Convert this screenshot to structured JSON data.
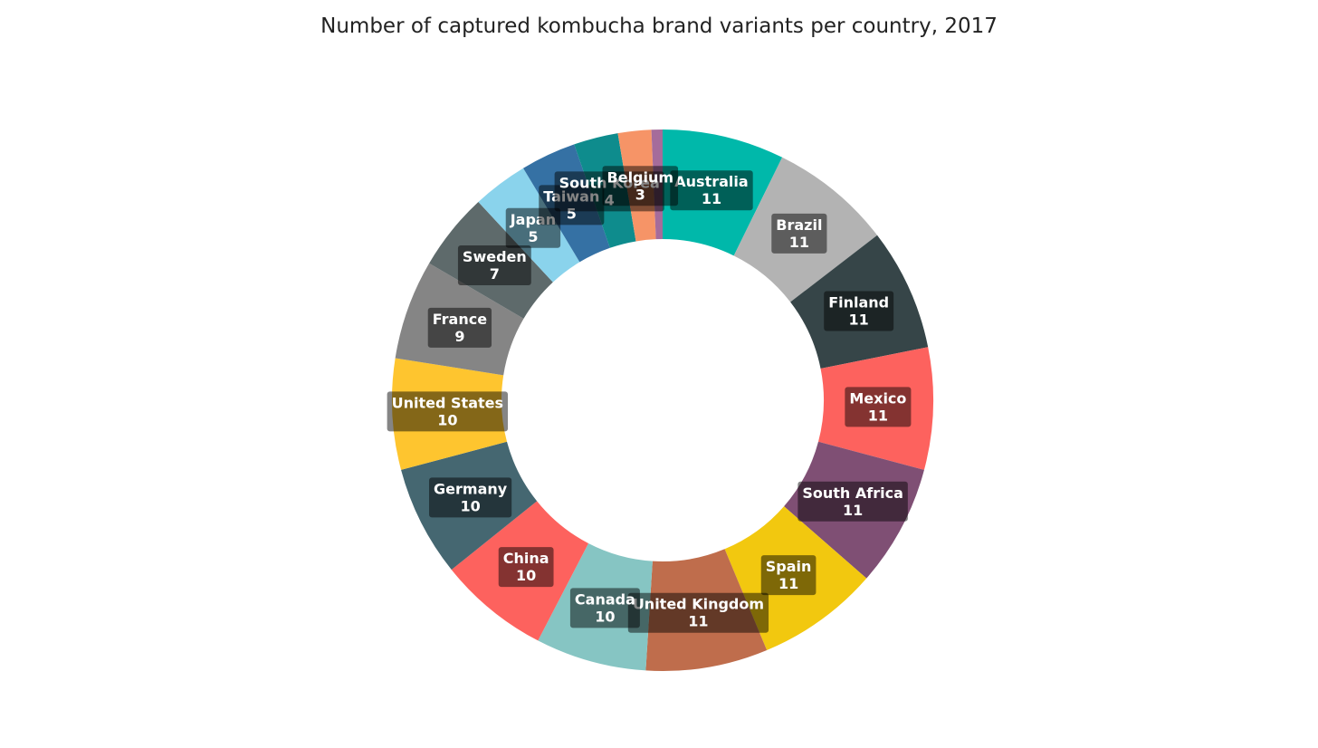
{
  "chart_data": {
    "type": "pie",
    "title": "Number of captured kombucha brand variants per country, 2017",
    "hole": true,
    "slices": [
      {
        "label": "Australia",
        "value": 11,
        "color": "#00b8aa"
      },
      {
        "label": "Brazil",
        "value": 11,
        "color": "#b3b3b3"
      },
      {
        "label": "Finland",
        "value": 11,
        "color": "#364548"
      },
      {
        "label": "Mexico",
        "value": 11,
        "color": "#fd625e"
      },
      {
        "label": "South Africa",
        "value": 11,
        "color": "#7f4f74"
      },
      {
        "label": "Spain",
        "value": 11,
        "color": "#f2c80f"
      },
      {
        "label": "United Kingdom",
        "value": 11,
        "color": "#bf6d4c"
      },
      {
        "label": "Canada",
        "value": 10,
        "color": "#86c5c3"
      },
      {
        "label": "China",
        "value": 10,
        "color": "#fd625e"
      },
      {
        "label": "Germany",
        "value": 10,
        "color": "#456771"
      },
      {
        "label": "United States",
        "value": 10,
        "color": "#fec52f"
      },
      {
        "label": "France",
        "value": 9,
        "color": "#858585"
      },
      {
        "label": "Sweden",
        "value": 7,
        "color": "#5e6a6b"
      },
      {
        "label": "Japan",
        "value": 5,
        "color": "#8ad3ec"
      },
      {
        "label": "Taiwan",
        "value": 5,
        "color": "#3571a4"
      },
      {
        "label": "South Korea",
        "value": 4,
        "color": "#0e8c8d"
      },
      {
        "label": "Belgium",
        "value": 3,
        "color": "#f69467"
      },
      {
        "label": "",
        "value": 1,
        "color": "#a56c9b"
      }
    ]
  }
}
